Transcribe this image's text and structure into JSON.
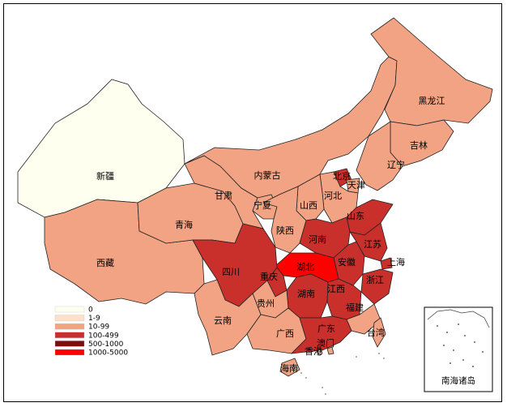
{
  "legend": [
    {
      "label": "0",
      "color": "#fffff0"
    },
    {
      "label": "1-9",
      "color": "#fde0c5"
    },
    {
      "label": "10-99",
      "color": "#f2a383"
    },
    {
      "label": "100-499",
      "color": "#c9302c"
    },
    {
      "label": "500-1000",
      "color": "#7a0f0f"
    },
    {
      "label": "1000-5000",
      "color": "#ff0000"
    }
  ],
  "regions": [
    {
      "name": "新疆",
      "bin": "0"
    },
    {
      "name": "西藏",
      "bin": "10-99"
    },
    {
      "name": "青海",
      "bin": "10-99"
    },
    {
      "name": "甘肃",
      "bin": "10-99"
    },
    {
      "name": "内蒙古",
      "bin": "10-99"
    },
    {
      "name": "黑龙江",
      "bin": "10-99"
    },
    {
      "name": "吉林",
      "bin": "10-99"
    },
    {
      "name": "辽宁",
      "bin": "10-99"
    },
    {
      "name": "北京",
      "bin": "100-499"
    },
    {
      "name": "天津",
      "bin": "10-99"
    },
    {
      "name": "河北",
      "bin": "10-99"
    },
    {
      "name": "山西",
      "bin": "10-99"
    },
    {
      "name": "宁夏",
      "bin": "10-99"
    },
    {
      "name": "陕西",
      "bin": "10-99"
    },
    {
      "name": "山东",
      "bin": "100-499"
    },
    {
      "name": "河南",
      "bin": "100-499"
    },
    {
      "name": "江苏",
      "bin": "100-499"
    },
    {
      "name": "安徽",
      "bin": "100-499"
    },
    {
      "name": "上海",
      "bin": "100-499"
    },
    {
      "name": "湖北",
      "bin": "1000-5000"
    },
    {
      "name": "四川",
      "bin": "100-499"
    },
    {
      "name": "重庆",
      "bin": "100-499"
    },
    {
      "name": "浙江",
      "bin": "100-499"
    },
    {
      "name": "湖南",
      "bin": "100-499"
    },
    {
      "name": "江西",
      "bin": "100-499"
    },
    {
      "name": "福建",
      "bin": "10-99"
    },
    {
      "name": "贵州",
      "bin": "10-99"
    },
    {
      "name": "云南",
      "bin": "10-99"
    },
    {
      "name": "广西",
      "bin": "10-99"
    },
    {
      "name": "广东",
      "bin": "100-499"
    },
    {
      "name": "台湾",
      "bin": "10-99"
    },
    {
      "name": "澳门",
      "bin": "1-9"
    },
    {
      "name": "香港",
      "bin": "10-99"
    },
    {
      "name": "海南",
      "bin": "10-99"
    }
  ],
  "inset_label": "南海诸岛"
}
